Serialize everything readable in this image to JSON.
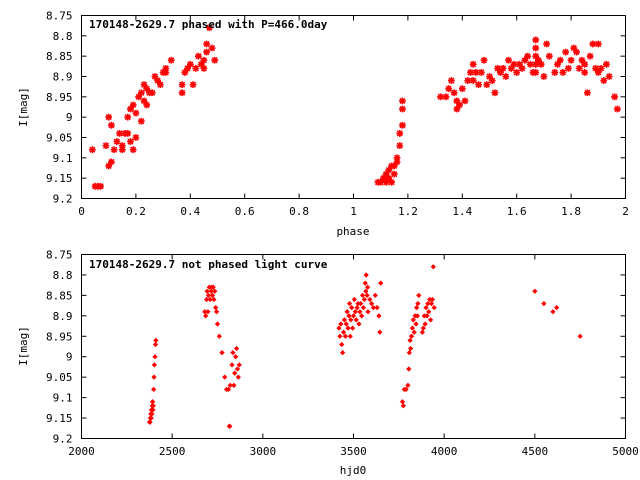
{
  "chart_data": [
    {
      "type": "scatter",
      "title": "170148-2629.7 phased with P=466.0day",
      "xlabel": "phase",
      "ylabel": "I[mag]",
      "xlim": [
        0,
        2
      ],
      "ylim": [
        9.2,
        8.75
      ],
      "y_inverted": true,
      "xticks": [
        0,
        0.2,
        0.4,
        0.6,
        0.8,
        1,
        1.2,
        1.4,
        1.6,
        1.8,
        2
      ],
      "yticks": [
        8.75,
        8.8,
        8.85,
        8.9,
        8.95,
        9,
        9.05,
        9.1,
        9.15,
        9.2
      ],
      "marker": "star",
      "color": "#ff0000",
      "grid": false,
      "points": [
        [
          0.04,
          9.08
        ],
        [
          0.05,
          9.17
        ],
        [
          0.06,
          9.17
        ],
        [
          0.07,
          9.17
        ],
        [
          0.09,
          9.07
        ],
        [
          0.1,
          9.12
        ],
        [
          0.1,
          9.0
        ],
        [
          0.11,
          9.11
        ],
        [
          0.11,
          9.02
        ],
        [
          0.12,
          9.08
        ],
        [
          0.13,
          9.06
        ],
        [
          0.14,
          9.04
        ],
        [
          0.15,
          9.08
        ],
        [
          0.15,
          9.07
        ],
        [
          0.16,
          9.04
        ],
        [
          0.17,
          9.04
        ],
        [
          0.17,
          9.0
        ],
        [
          0.18,
          8.98
        ],
        [
          0.18,
          9.06
        ],
        [
          0.19,
          9.08
        ],
        [
          0.19,
          8.97
        ],
        [
          0.2,
          8.99
        ],
        [
          0.2,
          9.05
        ],
        [
          0.21,
          8.95
        ],
        [
          0.22,
          9.01
        ],
        [
          0.22,
          8.94
        ],
        [
          0.23,
          8.96
        ],
        [
          0.23,
          8.92
        ],
        [
          0.24,
          8.97
        ],
        [
          0.24,
          8.93
        ],
        [
          0.25,
          8.94
        ],
        [
          0.26,
          8.94
        ],
        [
          0.27,
          8.9
        ],
        [
          0.28,
          8.91
        ],
        [
          0.29,
          8.92
        ],
        [
          0.3,
          8.89
        ],
        [
          0.31,
          8.89
        ],
        [
          0.31,
          8.88
        ],
        [
          0.33,
          8.86
        ],
        [
          0.37,
          8.94
        ],
        [
          0.37,
          8.92
        ],
        [
          0.38,
          8.89
        ],
        [
          0.39,
          8.88
        ],
        [
          0.4,
          8.87
        ],
        [
          0.41,
          8.92
        ],
        [
          0.42,
          8.88
        ],
        [
          0.43,
          8.85
        ],
        [
          0.44,
          8.87
        ],
        [
          0.45,
          8.86
        ],
        [
          0.45,
          8.88
        ],
        [
          0.46,
          8.84
        ],
        [
          0.46,
          8.82
        ],
        [
          0.47,
          8.78
        ],
        [
          0.48,
          8.83
        ],
        [
          0.49,
          8.86
        ],
        [
          1.09,
          9.16
        ],
        [
          1.1,
          9.16
        ],
        [
          1.11,
          9.15
        ],
        [
          1.12,
          9.16
        ],
        [
          1.12,
          9.14
        ],
        [
          1.13,
          9.15
        ],
        [
          1.13,
          9.13
        ],
        [
          1.14,
          9.12
        ],
        [
          1.14,
          9.16
        ],
        [
          1.15,
          9.14
        ],
        [
          1.15,
          9.12
        ],
        [
          1.16,
          9.1
        ],
        [
          1.16,
          9.11
        ],
        [
          1.17,
          9.07
        ],
        [
          1.17,
          9.04
        ],
        [
          1.18,
          9.02
        ],
        [
          1.18,
          8.96
        ],
        [
          1.18,
          8.98
        ],
        [
          1.32,
          8.95
        ],
        [
          1.34,
          8.95
        ],
        [
          1.35,
          8.93
        ],
        [
          1.36,
          8.91
        ],
        [
          1.37,
          8.94
        ],
        [
          1.38,
          8.96
        ],
        [
          1.38,
          8.98
        ],
        [
          1.39,
          8.97
        ],
        [
          1.4,
          8.93
        ],
        [
          1.41,
          8.96
        ],
        [
          1.42,
          8.91
        ],
        [
          1.43,
          8.89
        ],
        [
          1.44,
          8.87
        ],
        [
          1.44,
          8.91
        ],
        [
          1.45,
          8.89
        ],
        [
          1.46,
          8.92
        ],
        [
          1.47,
          8.89
        ],
        [
          1.48,
          8.86
        ],
        [
          1.49,
          8.92
        ],
        [
          1.5,
          8.9
        ],
        [
          1.51,
          8.91
        ],
        [
          1.52,
          8.94
        ],
        [
          1.53,
          8.88
        ],
        [
          1.54,
          8.89
        ],
        [
          1.55,
          8.88
        ],
        [
          1.56,
          8.9
        ],
        [
          1.57,
          8.86
        ],
        [
          1.58,
          8.88
        ],
        [
          1.59,
          8.87
        ],
        [
          1.6,
          8.89
        ],
        [
          1.61,
          8.87
        ],
        [
          1.62,
          8.88
        ],
        [
          1.63,
          8.86
        ],
        [
          1.64,
          8.85
        ],
        [
          1.65,
          8.87
        ],
        [
          1.66,
          8.89
        ],
        [
          1.67,
          8.81
        ],
        [
          1.67,
          8.83
        ],
        [
          1.67,
          8.85
        ],
        [
          1.67,
          8.87
        ],
        [
          1.67,
          8.89
        ],
        [
          1.68,
          8.86
        ],
        [
          1.69,
          8.87
        ],
        [
          1.7,
          8.9
        ],
        [
          1.71,
          8.82
        ],
        [
          1.72,
          8.85
        ],
        [
          1.74,
          8.89
        ],
        [
          1.75,
          8.87
        ],
        [
          1.76,
          8.86
        ],
        [
          1.77,
          8.89
        ],
        [
          1.78,
          8.84
        ],
        [
          1.79,
          8.88
        ],
        [
          1.8,
          8.86
        ],
        [
          1.81,
          8.83
        ],
        [
          1.82,
          8.84
        ],
        [
          1.83,
          8.88
        ],
        [
          1.84,
          8.86
        ],
        [
          1.85,
          8.89
        ],
        [
          1.85,
          8.87
        ],
        [
          1.86,
          8.94
        ],
        [
          1.87,
          8.85
        ],
        [
          1.88,
          8.82
        ],
        [
          1.89,
          8.88
        ],
        [
          1.9,
          8.82
        ],
        [
          1.9,
          8.89
        ],
        [
          1.91,
          8.88
        ],
        [
          1.92,
          8.91
        ],
        [
          1.93,
          8.87
        ],
        [
          1.94,
          8.9
        ],
        [
          1.96,
          8.95
        ],
        [
          1.97,
          8.98
        ]
      ]
    },
    {
      "type": "scatter",
      "title": "170148-2629.7 not phased light curve",
      "xlabel": "hjd0",
      "ylabel": "I[mag]",
      "xlim": [
        2000,
        5000
      ],
      "ylim": [
        9.2,
        8.75
      ],
      "y_inverted": true,
      "xticks": [
        2000,
        2500,
        3000,
        3500,
        4000,
        4500,
        5000
      ],
      "yticks": [
        8.75,
        8.8,
        8.85,
        8.9,
        8.95,
        9,
        9.05,
        9.1,
        9.15,
        9.2
      ],
      "marker": "diamond",
      "color": "#ff0000",
      "grid": false,
      "points": [
        [
          2375,
          9.16
        ],
        [
          2378,
          9.16
        ],
        [
          2380,
          9.15
        ],
        [
          2382,
          9.14
        ],
        [
          2384,
          9.15
        ],
        [
          2386,
          9.13
        ],
        [
          2388,
          9.14
        ],
        [
          2390,
          9.12
        ],
        [
          2392,
          9.11
        ],
        [
          2394,
          9.13
        ],
        [
          2396,
          9.12
        ],
        [
          2398,
          9.08
        ],
        [
          2400,
          9.05
        ],
        [
          2402,
          9.02
        ],
        [
          2405,
          9.0
        ],
        [
          2408,
          8.97
        ],
        [
          2410,
          8.96
        ],
        [
          2680,
          8.89
        ],
        [
          2685,
          8.9
        ],
        [
          2690,
          8.86
        ],
        [
          2693,
          8.84
        ],
        [
          2697,
          8.89
        ],
        [
          2700,
          8.85
        ],
        [
          2705,
          8.83
        ],
        [
          2710,
          8.86
        ],
        [
          2715,
          8.84
        ],
        [
          2718,
          8.83
        ],
        [
          2722,
          8.85
        ],
        [
          2726,
          8.83
        ],
        [
          2730,
          8.86
        ],
        [
          2735,
          8.84
        ],
        [
          2740,
          8.88
        ],
        [
          2745,
          8.89
        ],
        [
          2750,
          8.92
        ],
        [
          2760,
          8.95
        ],
        [
          2775,
          8.99
        ],
        [
          2790,
          9.05
        ],
        [
          2800,
          9.08
        ],
        [
          2810,
          9.08
        ],
        [
          2815,
          9.17
        ],
        [
          2818,
          9.17
        ],
        [
          2820,
          9.07
        ],
        [
          2830,
          9.02
        ],
        [
          2835,
          8.99
        ],
        [
          2840,
          9.07
        ],
        [
          2845,
          9.04
        ],
        [
          2850,
          9.0
        ],
        [
          2855,
          8.98
        ],
        [
          2860,
          9.03
        ],
        [
          2865,
          9.05
        ],
        [
          2870,
          9.02
        ],
        [
          3420,
          8.93
        ],
        [
          3425,
          8.95
        ],
        [
          3430,
          8.92
        ],
        [
          3435,
          8.97
        ],
        [
          3440,
          8.99
        ],
        [
          3445,
          8.94
        ],
        [
          3450,
          8.91
        ],
        [
          3455,
          8.95
        ],
        [
          3460,
          8.92
        ],
        [
          3465,
          8.89
        ],
        [
          3470,
          8.93
        ],
        [
          3475,
          8.9
        ],
        [
          3478,
          8.87
        ],
        [
          3482,
          8.95
        ],
        [
          3485,
          8.91
        ],
        [
          3490,
          8.88
        ],
        [
          3495,
          8.93
        ],
        [
          3500,
          8.9
        ],
        [
          3505,
          8.86
        ],
        [
          3510,
          8.89
        ],
        [
          3515,
          8.91
        ],
        [
          3520,
          8.88
        ],
        [
          3525,
          8.87
        ],
        [
          3530,
          8.92
        ],
        [
          3535,
          8.89
        ],
        [
          3540,
          8.87
        ],
        [
          3545,
          8.9
        ],
        [
          3550,
          8.85
        ],
        [
          3555,
          8.88
        ],
        [
          3560,
          8.86
        ],
        [
          3565,
          8.82
        ],
        [
          3568,
          8.84
        ],
        [
          3570,
          8.8
        ],
        [
          3575,
          8.85
        ],
        [
          3578,
          8.83
        ],
        [
          3580,
          8.89
        ],
        [
          3590,
          8.86
        ],
        [
          3600,
          8.87
        ],
        [
          3610,
          8.88
        ],
        [
          3620,
          8.85
        ],
        [
          3630,
          8.88
        ],
        [
          3640,
          8.9
        ],
        [
          3645,
          8.94
        ],
        [
          3650,
          8.82
        ],
        [
          3770,
          9.11
        ],
        [
          3775,
          9.12
        ],
        [
          3780,
          9.08
        ],
        [
          3790,
          9.08
        ],
        [
          3800,
          9.07
        ],
        [
          3805,
          9.03
        ],
        [
          3808,
          8.99
        ],
        [
          3812,
          8.96
        ],
        [
          3815,
          8.98
        ],
        [
          3820,
          8.95
        ],
        [
          3825,
          8.93
        ],
        [
          3830,
          8.91
        ],
        [
          3835,
          8.94
        ],
        [
          3840,
          8.9
        ],
        [
          3845,
          8.92
        ],
        [
          3848,
          8.88
        ],
        [
          3852,
          8.9
        ],
        [
          3855,
          8.87
        ],
        [
          3860,
          8.85
        ],
        [
          3880,
          8.94
        ],
        [
          3885,
          8.93
        ],
        [
          3890,
          8.9
        ],
        [
          3895,
          8.92
        ],
        [
          3900,
          8.88
        ],
        [
          3905,
          8.9
        ],
        [
          3910,
          8.87
        ],
        [
          3915,
          8.89
        ],
        [
          3920,
          8.86
        ],
        [
          3925,
          8.91
        ],
        [
          3930,
          8.87
        ],
        [
          3935,
          8.86
        ],
        [
          3940,
          8.78
        ],
        [
          3945,
          8.88
        ],
        [
          4500,
          8.84
        ],
        [
          4550,
          8.87
        ],
        [
          4600,
          8.89
        ],
        [
          4620,
          8.88
        ],
        [
          4750,
          8.95
        ]
      ]
    }
  ]
}
